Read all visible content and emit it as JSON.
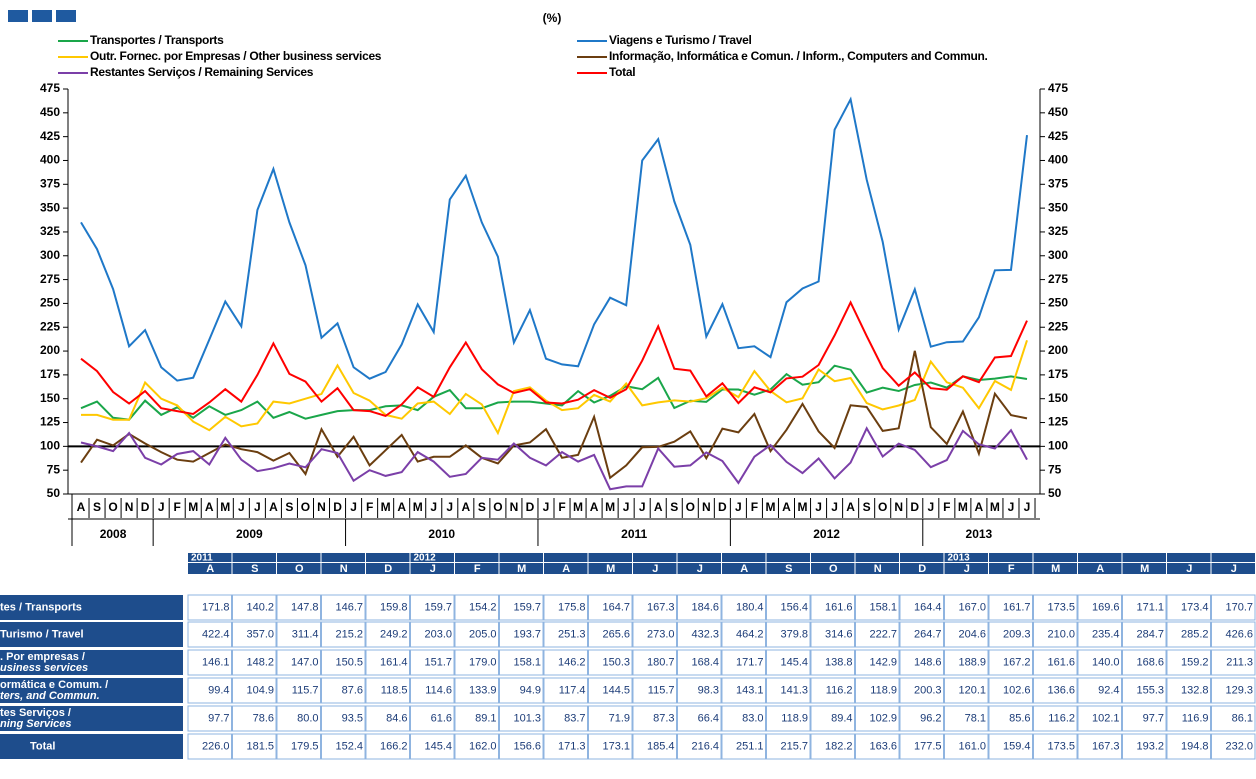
{
  "header": {
    "subtitle": "(%)"
  },
  "chart_data": {
    "type": "line",
    "categories": [
      "A",
      "S",
      "O",
      "N",
      "D",
      "J",
      "F",
      "M",
      "A",
      "M",
      "J",
      "J",
      "A",
      "S",
      "O",
      "N",
      "D",
      "J",
      "F",
      "M",
      "A",
      "M",
      "J",
      "J",
      "A",
      "S",
      "O",
      "N",
      "D",
      "J",
      "F",
      "M",
      "A",
      "M",
      "J",
      "J",
      "A",
      "S",
      "O",
      "N",
      "D",
      "J",
      "F",
      "M",
      "A",
      "M",
      "J",
      "J",
      "A",
      "S",
      "O",
      "N",
      "D",
      "J",
      "F",
      "M",
      "A",
      "M",
      "J",
      "J"
    ],
    "years": [
      "2008",
      "2009",
      "2010",
      "2011",
      "2012",
      "2013"
    ],
    "ylim": [
      50,
      475
    ],
    "yticks": [
      50,
      75,
      100,
      125,
      150,
      175,
      200,
      225,
      250,
      275,
      300,
      325,
      350,
      375,
      400,
      425,
      450,
      475
    ],
    "reference_line": 100,
    "series": [
      {
        "name": "Transportes / Transports",
        "color": "#1aa64a",
        "values": [
          140,
          147,
          130,
          128,
          148,
          133,
          141,
          130,
          142,
          133,
          138,
          147,
          130,
          136,
          129,
          133,
          137,
          138,
          138,
          142,
          143,
          138,
          152,
          159,
          140,
          140,
          146,
          147,
          147,
          145,
          143,
          158,
          146,
          153,
          163,
          160,
          171.8,
          140.2,
          147.8,
          146.7,
          159.8,
          159.7,
          154.2,
          159.7,
          175.8,
          164.7,
          167.3,
          184.6,
          180.4,
          156.4,
          161.6,
          158.1,
          164.4,
          167.0,
          161.7,
          173.5,
          169.6,
          171.1,
          173.4,
          170.7
        ]
      },
      {
        "name": "Viagens e Turismo / Travel",
        "color": "#1f78c8",
        "values": [
          335,
          307,
          265,
          205,
          222,
          183,
          169,
          172,
          212,
          252,
          226,
          348,
          391,
          335,
          290,
          214,
          229,
          183,
          171,
          178,
          207,
          249,
          220,
          359,
          384,
          335,
          299,
          209,
          243,
          192,
          186,
          184,
          228,
          256,
          248,
          400,
          422.4,
          357.0,
          311.4,
          215.2,
          249.2,
          203.0,
          205.0,
          193.7,
          251.3,
          265.6,
          273.0,
          432.3,
          464.2,
          379.8,
          314.6,
          222.7,
          264.7,
          204.6,
          209.3,
          210.0,
          235.4,
          284.7,
          285.2,
          426.6
        ]
      },
      {
        "name": "Outr. Fornec. por Empresas  / Other business services",
        "color": "#ffc800",
        "values": [
          133,
          133,
          128,
          128,
          167,
          150,
          143,
          126,
          117,
          131,
          121,
          124,
          147,
          145,
          150,
          155,
          185,
          156,
          148,
          133,
          129,
          145,
          147,
          134,
          155,
          144,
          114,
          158,
          162,
          148,
          138,
          140,
          154,
          147,
          166,
          143,
          146.1,
          148.2,
          147.0,
          150.5,
          161.4,
          151.7,
          179.0,
          158.1,
          146.2,
          150.3,
          180.7,
          168.4,
          171.7,
          145.4,
          138.8,
          142.9,
          148.6,
          188.9,
          167.2,
          161.6,
          140.0,
          168.6,
          159.2,
          211.3
        ]
      },
      {
        "name": "Informação, Informática e Comun. /  Inform., Computers and Commun.",
        "color": "#6b3e10",
        "values": [
          83,
          107,
          101,
          113,
          103,
          94,
          86,
          84,
          93,
          102,
          97,
          94,
          85,
          93,
          71,
          118,
          89,
          110,
          80,
          96,
          112,
          84,
          89,
          89,
          101,
          88,
          82,
          101,
          104,
          118,
          88,
          91,
          131,
          67,
          80,
          99,
          99.4,
          104.9,
          115.7,
          87.6,
          118.5,
          114.6,
          133.9,
          94.9,
          117.4,
          144.5,
          115.7,
          98.3,
          143.1,
          141.3,
          116.2,
          118.9,
          200.3,
          120.1,
          102.6,
          136.6,
          92.4,
          155.3,
          132.8,
          129.3
        ]
      },
      {
        "name": "Restantes Serviços / Remaining Services",
        "color": "#7b3fa8",
        "values": [
          104,
          100,
          95,
          114,
          88,
          81,
          92,
          95,
          81,
          109,
          86,
          74,
          77,
          82,
          78,
          97,
          93,
          64,
          75,
          69,
          73,
          94,
          84,
          68,
          71,
          88,
          86,
          103,
          88,
          80,
          94,
          84,
          91,
          55,
          58,
          58,
          97.7,
          78.6,
          80.0,
          93.5,
          84.6,
          61.6,
          89.1,
          101.3,
          83.7,
          71.9,
          87.3,
          66.4,
          83.0,
          118.9,
          89.4,
          102.9,
          96.2,
          78.1,
          85.6,
          116.2,
          102.1,
          97.7,
          116.9,
          86.1
        ]
      },
      {
        "name": "Total",
        "color": "#ff0000",
        "values": [
          192,
          179,
          157,
          145,
          158,
          140,
          137,
          134,
          146,
          160,
          147,
          175,
          208,
          176,
          168,
          147,
          161,
          138,
          137,
          132,
          144,
          162,
          152,
          183,
          209,
          181,
          165,
          156,
          160,
          146,
          145,
          149,
          159,
          151,
          160,
          190,
          226.0,
          181.5,
          179.5,
          152.4,
          166.2,
          145.4,
          162.0,
          156.6,
          171.3,
          173.1,
          185.4,
          216.4,
          251.1,
          215.7,
          182.2,
          163.6,
          177.5,
          161.0,
          159.4,
          173.5,
          167.3,
          193.2,
          194.8,
          232.0
        ]
      }
    ]
  },
  "table": {
    "year_row": [
      "2011",
      null,
      null,
      null,
      null,
      "2012",
      null,
      null,
      null,
      null,
      null,
      null,
      null,
      null,
      null,
      null,
      null,
      "2013",
      null,
      null,
      null,
      null,
      null,
      null
    ],
    "month_row": [
      "A",
      "S",
      "O",
      "N",
      "D",
      "J",
      "F",
      "M",
      "A",
      "M",
      "J",
      "J",
      "A",
      "S",
      "O",
      "N",
      "D",
      "J",
      "F",
      "M",
      "A",
      "M",
      "J",
      "J"
    ],
    "rows": [
      {
        "label": [
          "tes / Transports"
        ],
        "values": [
          "171.8",
          "140.2",
          "147.8",
          "146.7",
          "159.8",
          "159.7",
          "154.2",
          "159.7",
          "175.8",
          "164.7",
          "167.3",
          "184.6",
          "180.4",
          "156.4",
          "161.6",
          "158.1",
          "164.4",
          "167.0",
          "161.7",
          "173.5",
          "169.6",
          "171.1",
          "173.4",
          "170.7"
        ]
      },
      {
        "label": [
          "Turismo / Travel"
        ],
        "values": [
          "422.4",
          "357.0",
          "311.4",
          "215.2",
          "249.2",
          "203.0",
          "205.0",
          "193.7",
          "251.3",
          "265.6",
          "273.0",
          "432.3",
          "464.2",
          "379.8",
          "314.6",
          "222.7",
          "264.7",
          "204.6",
          "209.3",
          "210.0",
          "235.4",
          "284.7",
          "285.2",
          "426.6"
        ]
      },
      {
        "label": [
          ". Por empresas /",
          "usiness services"
        ],
        "values": [
          "146.1",
          "148.2",
          "147.0",
          "150.5",
          "161.4",
          "151.7",
          "179.0",
          "158.1",
          "146.2",
          "150.3",
          "180.7",
          "168.4",
          "171.7",
          "145.4",
          "138.8",
          "142.9",
          "148.6",
          "188.9",
          "167.2",
          "161.6",
          "140.0",
          "168.6",
          "159.2",
          "211.3"
        ]
      },
      {
        "label": [
          "ormática e Comum. /",
          "ters, and Commun."
        ],
        "values": [
          "99.4",
          "104.9",
          "115.7",
          "87.6",
          "118.5",
          "114.6",
          "133.9",
          "94.9",
          "117.4",
          "144.5",
          "115.7",
          "98.3",
          "143.1",
          "141.3",
          "116.2",
          "118.9",
          "200.3",
          "120.1",
          "102.6",
          "136.6",
          "92.4",
          "155.3",
          "132.8",
          "129.3"
        ]
      },
      {
        "label": [
          "tes Serviços /",
          "ning Services"
        ],
        "values": [
          "97.7",
          "78.6",
          "80.0",
          "93.5",
          "84.6",
          "61.6",
          "89.1",
          "101.3",
          "83.7",
          "71.9",
          "87.3",
          "66.4",
          "83.0",
          "118.9",
          "89.4",
          "102.9",
          "96.2",
          "78.1",
          "85.6",
          "116.2",
          "102.1",
          "97.7",
          "116.9",
          "86.1"
        ]
      },
      {
        "label": [
          "Total"
        ],
        "values": [
          "226.0",
          "181.5",
          "179.5",
          "152.4",
          "166.2",
          "145.4",
          "162.0",
          "156.6",
          "171.3",
          "173.1",
          "185.4",
          "216.4",
          "251.1",
          "215.7",
          "182.2",
          "163.6",
          "177.5",
          "161.0",
          "159.4",
          "173.5",
          "167.3",
          "193.2",
          "194.8",
          "232.0"
        ]
      }
    ]
  }
}
